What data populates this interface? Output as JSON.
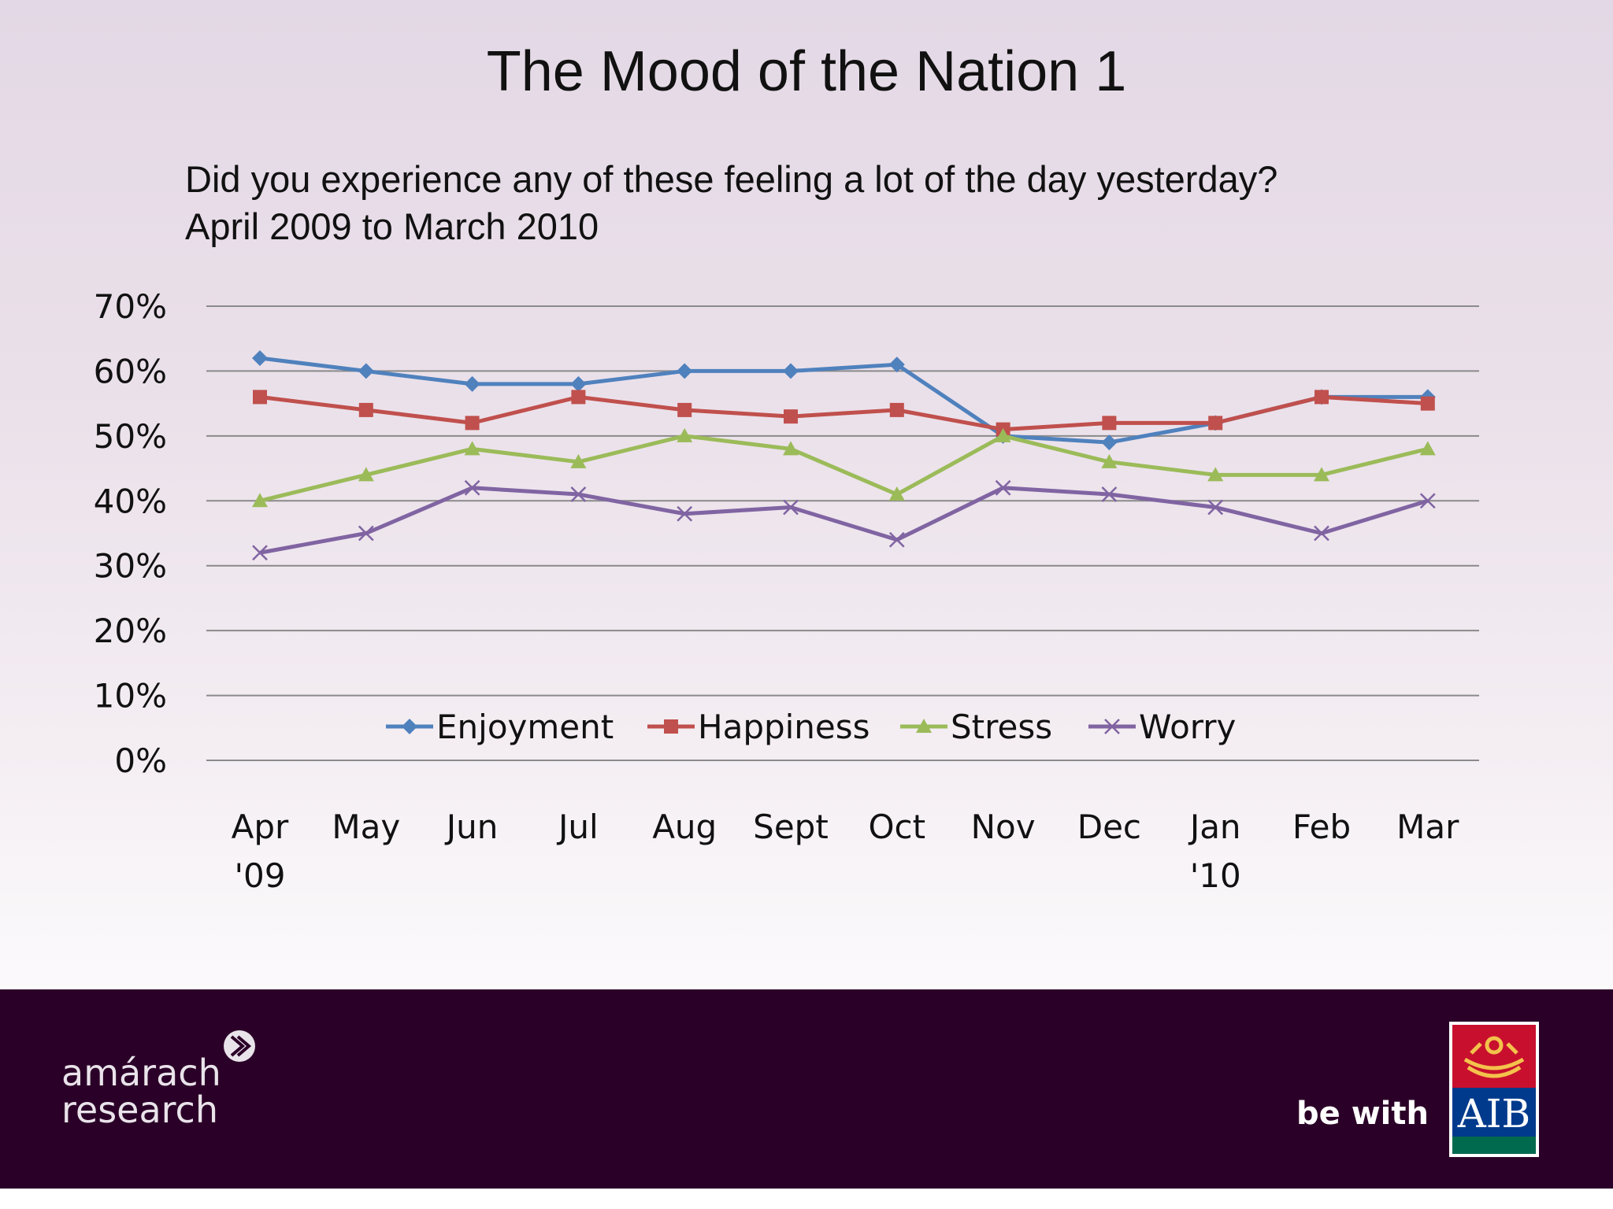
{
  "slide": {
    "title": "The Mood of the Nation 1",
    "subtitle_line1": "Did you experience any of these feeling a lot of the day yesterday?",
    "subtitle_line2": "April 2009 to March 2010"
  },
  "chart_data": {
    "type": "line",
    "categories": [
      [
        "Apr",
        "'09"
      ],
      [
        "May"
      ],
      [
        "Jun"
      ],
      [
        "Jul"
      ],
      [
        "Aug"
      ],
      [
        "Sept"
      ],
      [
        "Oct"
      ],
      [
        "Nov"
      ],
      [
        "Dec"
      ],
      [
        "Jan",
        "'10"
      ],
      [
        "Feb"
      ],
      [
        "Mar"
      ]
    ],
    "yticks": [
      "0%",
      "10%",
      "20%",
      "30%",
      "40%",
      "50%",
      "60%",
      "70%"
    ],
    "ylim": [
      0,
      70
    ],
    "grid": true,
    "legend": "inside-bottom",
    "series": [
      {
        "name": "Enjoyment",
        "color": "#4f81bd",
        "marker": "diamond",
        "values": [
          62,
          60,
          58,
          58,
          60,
          60,
          61,
          50,
          49,
          52,
          56,
          56
        ]
      },
      {
        "name": "Happiness",
        "color": "#c0504d",
        "marker": "square",
        "values": [
          56,
          54,
          52,
          56,
          54,
          53,
          54,
          51,
          52,
          52,
          56,
          55
        ]
      },
      {
        "name": "Stress",
        "color": "#9bbb59",
        "marker": "triangle",
        "values": [
          40,
          44,
          48,
          46,
          50,
          48,
          41,
          50,
          46,
          44,
          44,
          48
        ]
      },
      {
        "name": "Worry",
        "color": "#8064a2",
        "marker": "x",
        "values": [
          32,
          35,
          42,
          41,
          38,
          39,
          34,
          42,
          41,
          39,
          35,
          40
        ]
      }
    ]
  },
  "footer": {
    "brand_line1": "amárach",
    "brand_line2": "research",
    "tagline": "be with",
    "partner_logo_text": "AIB"
  }
}
